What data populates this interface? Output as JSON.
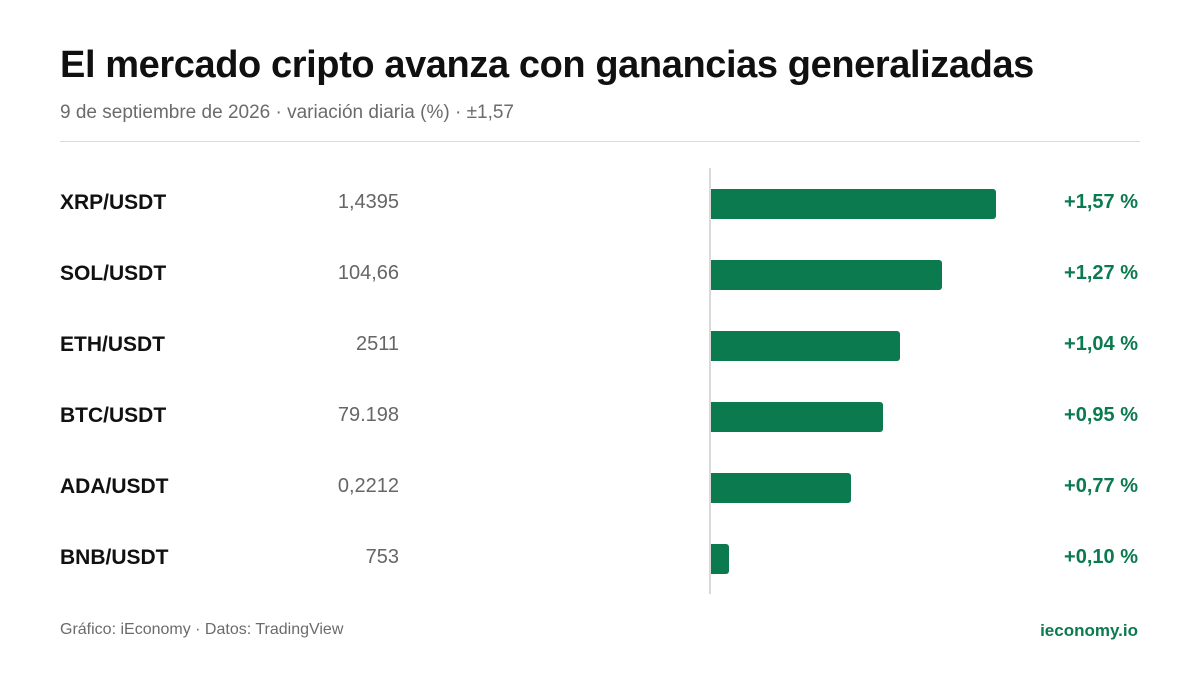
{
  "title": "El mercado cripto avanza con ganancias generalizadas",
  "subtitle": "9 de septiembre de 2026 · variación diaria (%) · ±1,57",
  "footer": {
    "source": "Gráfico: iEconomy · Datos: TradingView",
    "brand": "ieconomy.io"
  },
  "colors": {
    "positive": "#0b7a4f",
    "axis": "#d9d9d9"
  },
  "chart_data": {
    "type": "bar",
    "orientation": "horizontal",
    "title": "El mercado cripto avanza con ganancias generalizadas",
    "subtitle": "9 de septiembre de 2026 · variación diaria (%) · ±1,57",
    "xlim": [
      -1.57,
      1.57
    ],
    "categories": [
      "XRP/USDT",
      "SOL/USDT",
      "ETH/USDT",
      "BTC/USDT",
      "ADA/USDT",
      "BNB/USDT"
    ],
    "rows": [
      {
        "pair": "XRP/USDT",
        "price": "1,4395",
        "value": 1.57,
        "label": "+1,57 %"
      },
      {
        "pair": "SOL/USDT",
        "price": "104,66",
        "value": 1.27,
        "label": "+1,27 %"
      },
      {
        "pair": "ETH/USDT",
        "price": "2511",
        "value": 1.04,
        "label": "+1,04 %"
      },
      {
        "pair": "BTC/USDT",
        "price": "79.198",
        "value": 0.95,
        "label": "+0,95 %"
      },
      {
        "pair": "ADA/USDT",
        "price": "0,2212",
        "value": 0.77,
        "label": "+0,77 %"
      },
      {
        "pair": "BNB/USDT",
        "price": "753",
        "value": 0.1,
        "label": "+0,10 %"
      }
    ]
  }
}
